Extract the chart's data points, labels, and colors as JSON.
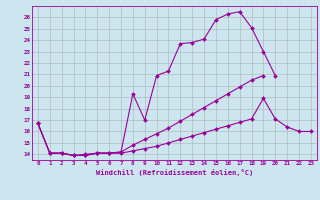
{
  "xlabel": "Windchill (Refroidissement éolien,°C)",
  "x": [
    0,
    1,
    2,
    3,
    4,
    5,
    6,
    7,
    8,
    9,
    10,
    11,
    12,
    13,
    14,
    15,
    16,
    17,
    18,
    19,
    20,
    21,
    22,
    23
  ],
  "series": {
    "s1": [
      16.7,
      14.1,
      14.1,
      13.9,
      13.9,
      14.1,
      14.1,
      14.1,
      14.3,
      14.5,
      14.7,
      15.0,
      15.3,
      15.6,
      15.9,
      16.2,
      16.5,
      16.8,
      17.1,
      18.9,
      17.1,
      16.4,
      16.0,
      16.0
    ],
    "s2": [
      16.7,
      14.1,
      14.1,
      13.9,
      13.9,
      14.1,
      14.1,
      14.2,
      14.8,
      15.3,
      15.8,
      16.3,
      16.9,
      17.5,
      18.1,
      18.7,
      19.3,
      19.9,
      20.5,
      20.9,
      null,
      null,
      null,
      null
    ],
    "s3": [
      16.7,
      14.1,
      14.1,
      13.9,
      14.0,
      14.1,
      14.1,
      14.2,
      19.3,
      17.0,
      20.9,
      21.3,
      23.7,
      23.8,
      24.1,
      25.8,
      26.3,
      26.5,
      25.1,
      23.0,
      20.9,
      null,
      null,
      null
    ]
  },
  "color": "#990099",
  "bg_color": "#cce5ee",
  "grid_color": "#aabbbb",
  "ylim": [
    13.5,
    27
  ],
  "xlim": [
    -0.5,
    23.5
  ],
  "yticks": [
    14,
    15,
    16,
    17,
    18,
    19,
    20,
    21,
    22,
    23,
    24,
    25,
    26
  ],
  "xticks": [
    0,
    1,
    2,
    3,
    4,
    5,
    6,
    7,
    8,
    9,
    10,
    11,
    12,
    13,
    14,
    15,
    16,
    17,
    18,
    19,
    20,
    21,
    22,
    23
  ]
}
